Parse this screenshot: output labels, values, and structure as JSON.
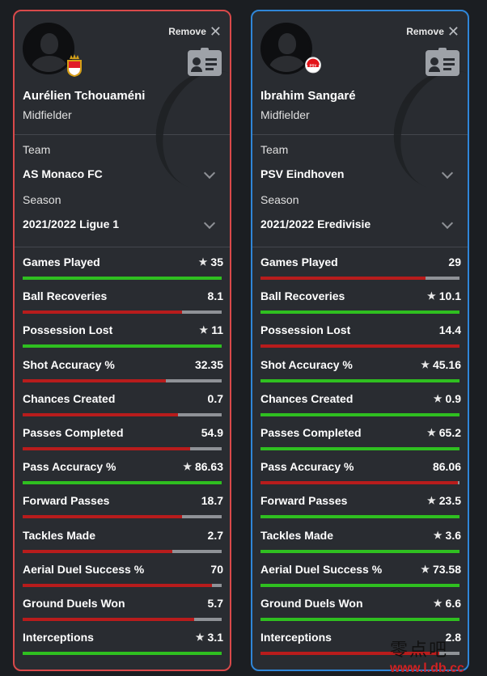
{
  "colors": {
    "win": "#2fbf20",
    "lose": "#b81c1c",
    "track": "#8f9297",
    "left_border": "#d9494a",
    "right_border": "#2f86d8"
  },
  "remove_label": "Remove",
  "labels": {
    "team": "Team",
    "season": "Season"
  },
  "left": {
    "name": "Aurélien Tchouaméni",
    "position": "Midfielder",
    "team": "AS Monaco FC",
    "season": "2021/2022 Ligue 1",
    "stats": [
      {
        "name": "Games Played",
        "value": "35",
        "star": true,
        "fill": 1.0,
        "color": "win"
      },
      {
        "name": "Ball Recoveries",
        "value": "8.1",
        "star": false,
        "fill": 0.8,
        "color": "lose"
      },
      {
        "name": "Possession Lost",
        "value": "11",
        "star": true,
        "fill": 1.0,
        "color": "win"
      },
      {
        "name": "Shot Accuracy %",
        "value": "32.35",
        "star": false,
        "fill": 0.72,
        "color": "lose"
      },
      {
        "name": "Chances Created",
        "value": "0.7",
        "star": false,
        "fill": 0.78,
        "color": "lose"
      },
      {
        "name": "Passes Completed",
        "value": "54.9",
        "star": false,
        "fill": 0.84,
        "color": "lose"
      },
      {
        "name": "Pass Accuracy %",
        "value": "86.63",
        "star": true,
        "fill": 1.0,
        "color": "win"
      },
      {
        "name": "Forward Passes",
        "value": "18.7",
        "star": false,
        "fill": 0.8,
        "color": "lose"
      },
      {
        "name": "Tackles Made",
        "value": "2.7",
        "star": false,
        "fill": 0.75,
        "color": "lose"
      },
      {
        "name": "Aerial Duel Success %",
        "value": "70",
        "star": false,
        "fill": 0.95,
        "color": "lose"
      },
      {
        "name": "Ground Duels Won",
        "value": "5.7",
        "star": false,
        "fill": 0.86,
        "color": "lose"
      },
      {
        "name": "Interceptions",
        "value": "3.1",
        "star": true,
        "fill": 1.0,
        "color": "win"
      }
    ]
  },
  "right": {
    "name": "Ibrahim Sangaré",
    "position": "Midfielder",
    "team": "PSV Eindhoven",
    "season": "2021/2022 Eredivisie",
    "stats": [
      {
        "name": "Games Played",
        "value": "29",
        "star": false,
        "fill": 0.83,
        "color": "lose"
      },
      {
        "name": "Ball Recoveries",
        "value": "10.1",
        "star": true,
        "fill": 1.0,
        "color": "win"
      },
      {
        "name": "Possession Lost",
        "value": "14.4",
        "star": false,
        "fill": 1.0,
        "color": "lose"
      },
      {
        "name": "Shot Accuracy %",
        "value": "45.16",
        "star": true,
        "fill": 1.0,
        "color": "win"
      },
      {
        "name": "Chances Created",
        "value": "0.9",
        "star": true,
        "fill": 1.0,
        "color": "win"
      },
      {
        "name": "Passes Completed",
        "value": "65.2",
        "star": true,
        "fill": 1.0,
        "color": "win"
      },
      {
        "name": "Pass Accuracy %",
        "value": "86.06",
        "star": false,
        "fill": 0.99,
        "color": "lose"
      },
      {
        "name": "Forward Passes",
        "value": "23.5",
        "star": true,
        "fill": 1.0,
        "color": "win"
      },
      {
        "name": "Tackles Made",
        "value": "3.6",
        "star": true,
        "fill": 1.0,
        "color": "win"
      },
      {
        "name": "Aerial Duel Success %",
        "value": "73.58",
        "star": true,
        "fill": 1.0,
        "color": "win"
      },
      {
        "name": "Ground Duels Won",
        "value": "6.6",
        "star": true,
        "fill": 1.0,
        "color": "win"
      },
      {
        "name": "Interceptions",
        "value": "2.8",
        "star": false,
        "fill": 0.9,
        "color": "lose"
      }
    ]
  },
  "watermark": {
    "line1": "零点吧",
    "line2": "www.l.db.cc"
  }
}
